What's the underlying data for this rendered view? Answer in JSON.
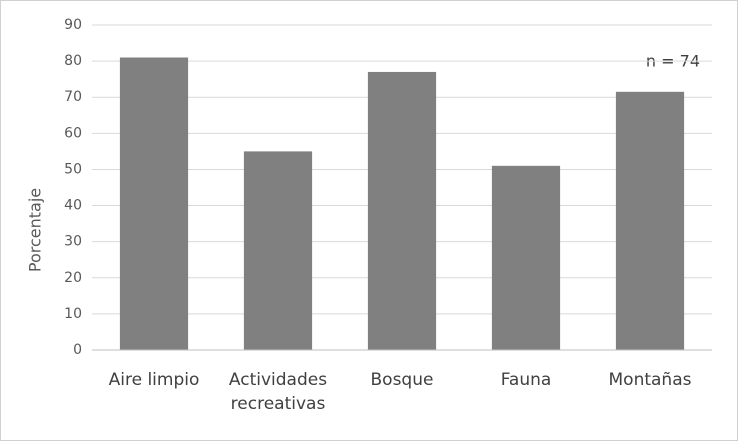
{
  "chart_data": {
    "type": "bar",
    "y_label": "Porcentaje",
    "annotation": "n = 74",
    "categories": [
      "Aire limpio",
      "Actividades recreativas",
      "Bosque",
      "Fauna",
      "Montañas"
    ],
    "values": [
      81,
      55,
      77,
      51,
      71.5
    ],
    "color": "#808080",
    "ylim": [
      0,
      90
    ],
    "yticks": [
      0,
      10,
      20,
      30,
      40,
      50,
      60,
      70,
      80,
      90
    ],
    "grid": true
  }
}
